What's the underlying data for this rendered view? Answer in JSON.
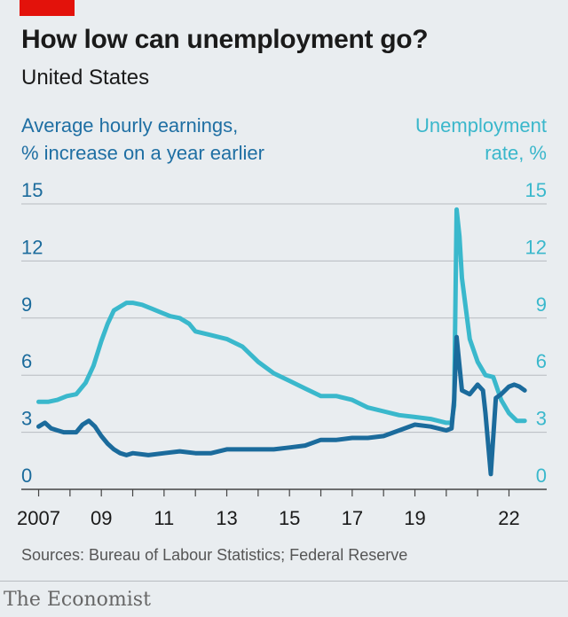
{
  "title": "How low can unemployment go?",
  "subtitle": "United States",
  "left_axis_label": [
    "Average hourly earnings,",
    "% increase on a year earlier"
  ],
  "right_axis_label": [
    "Unemployment",
    "rate, %"
  ],
  "source": "Sources: Bureau of Labour Statistics; Federal Reserve",
  "brand": "The Economist",
  "colors": {
    "earnings": "#1b6b9c",
    "unemployment": "#3ab8cc",
    "accent": "#e3120b",
    "grid": "#b8bcc0"
  },
  "chart_data": {
    "type": "line",
    "title": "How low can unemployment go?",
    "subtitle": "United States",
    "xlim": [
      2006.9,
      2022.75
    ],
    "ylim": [
      0,
      15
    ],
    "yticks": [
      0,
      3,
      6,
      9,
      12,
      15
    ],
    "xticks": [
      {
        "value": 2007,
        "label": "2007"
      },
      {
        "value": 2009,
        "label": "09"
      },
      {
        "value": 2011,
        "label": "11"
      },
      {
        "value": 2013,
        "label": "13"
      },
      {
        "value": 2015,
        "label": "15"
      },
      {
        "value": 2017,
        "label": "17"
      },
      {
        "value": 2019,
        "label": "19"
      },
      {
        "value": 2022,
        "label": "22"
      }
    ],
    "grid": true,
    "series": [
      {
        "name": "Average hourly earnings, % increase on a year earlier",
        "axis": "left",
        "x": [
          2007.0,
          2007.2,
          2007.4,
          2007.6,
          2007.8,
          2008.0,
          2008.2,
          2008.4,
          2008.6,
          2008.8,
          2009.0,
          2009.2,
          2009.4,
          2009.6,
          2009.8,
          2010.0,
          2010.5,
          2011.0,
          2011.5,
          2012.0,
          2012.5,
          2013.0,
          2013.5,
          2014.0,
          2014.5,
          2015.0,
          2015.5,
          2016.0,
          2016.5,
          2017.0,
          2017.5,
          2018.0,
          2018.5,
          2019.0,
          2019.5,
          2020.0,
          2020.17,
          2020.25,
          2020.33,
          2020.5,
          2020.75,
          2021.0,
          2021.17,
          2021.25,
          2021.42,
          2021.58,
          2021.75,
          2022.0,
          2022.17,
          2022.33,
          2022.5
        ],
        "y": [
          3.3,
          3.5,
          3.2,
          3.1,
          3.0,
          3.0,
          3.0,
          3.4,
          3.6,
          3.3,
          2.8,
          2.4,
          2.1,
          1.9,
          1.8,
          1.9,
          1.8,
          1.9,
          2.0,
          1.9,
          1.9,
          2.1,
          2.1,
          2.1,
          2.1,
          2.2,
          2.3,
          2.6,
          2.6,
          2.7,
          2.7,
          2.8,
          3.1,
          3.4,
          3.3,
          3.1,
          3.2,
          4.7,
          8.0,
          5.2,
          5.0,
          5.5,
          5.2,
          4.0,
          0.8,
          4.8,
          5.0,
          5.4,
          5.5,
          5.4,
          5.2
        ]
      },
      {
        "name": "Unemployment rate, %",
        "axis": "right",
        "x": [
          2007.0,
          2007.3,
          2007.6,
          2007.9,
          2008.2,
          2008.5,
          2008.75,
          2009.0,
          2009.2,
          2009.4,
          2009.6,
          2009.8,
          2010.0,
          2010.3,
          2010.6,
          2010.9,
          2011.2,
          2011.5,
          2011.8,
          2012.0,
          2012.5,
          2013.0,
          2013.5,
          2014.0,
          2014.5,
          2015.0,
          2015.5,
          2016.0,
          2016.5,
          2017.0,
          2017.5,
          2018.0,
          2018.5,
          2019.0,
          2019.5,
          2020.0,
          2020.17,
          2020.25,
          2020.33,
          2020.42,
          2020.5,
          2020.75,
          2021.0,
          2021.25,
          2021.5,
          2021.75,
          2022.0,
          2022.25,
          2022.5
        ],
        "y": [
          4.6,
          4.6,
          4.7,
          4.9,
          5.0,
          5.6,
          6.5,
          7.8,
          8.7,
          9.4,
          9.6,
          9.8,
          9.8,
          9.7,
          9.5,
          9.3,
          9.1,
          9.0,
          8.7,
          8.3,
          8.1,
          7.9,
          7.5,
          6.7,
          6.1,
          5.7,
          5.3,
          4.9,
          4.9,
          4.7,
          4.3,
          4.1,
          3.9,
          3.8,
          3.7,
          3.5,
          3.5,
          4.4,
          14.7,
          13.3,
          11.1,
          7.9,
          6.7,
          6.0,
          5.9,
          4.7,
          4.0,
          3.6,
          3.6
        ]
      }
    ]
  }
}
